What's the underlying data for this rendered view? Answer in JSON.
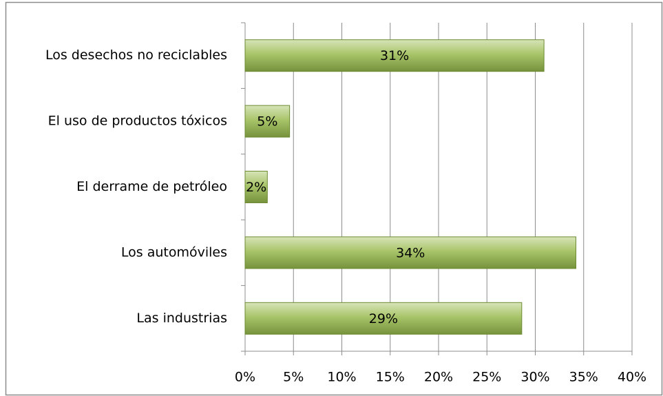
{
  "chart_data": {
    "type": "bar",
    "orientation": "horizontal",
    "categories": [
      "Los desechos no reciclables",
      "El uso de productos tóxicos",
      "El derrame de petróleo",
      "Los automóviles",
      "Las industrias"
    ],
    "values": [
      30.9,
      4.6,
      2.3,
      34.2,
      28.6
    ],
    "value_labels": [
      "31%",
      "5%",
      "2%",
      "34%",
      "29%"
    ],
    "color": "#9bbb59",
    "xlim": [
      0,
      40
    ],
    "xticks": [
      {
        "value": 0,
        "label": "0%"
      },
      {
        "value": 5,
        "label": "5%"
      },
      {
        "value": 10,
        "label": "10%"
      },
      {
        "value": 15,
        "label": "15%"
      },
      {
        "value": 20,
        "label": "20%"
      },
      {
        "value": 25,
        "label": "25%"
      },
      {
        "value": 30,
        "label": "30%"
      },
      {
        "value": 35,
        "label": "35%"
      },
      {
        "value": 40,
        "label": "40%"
      }
    ],
    "grid": true
  }
}
